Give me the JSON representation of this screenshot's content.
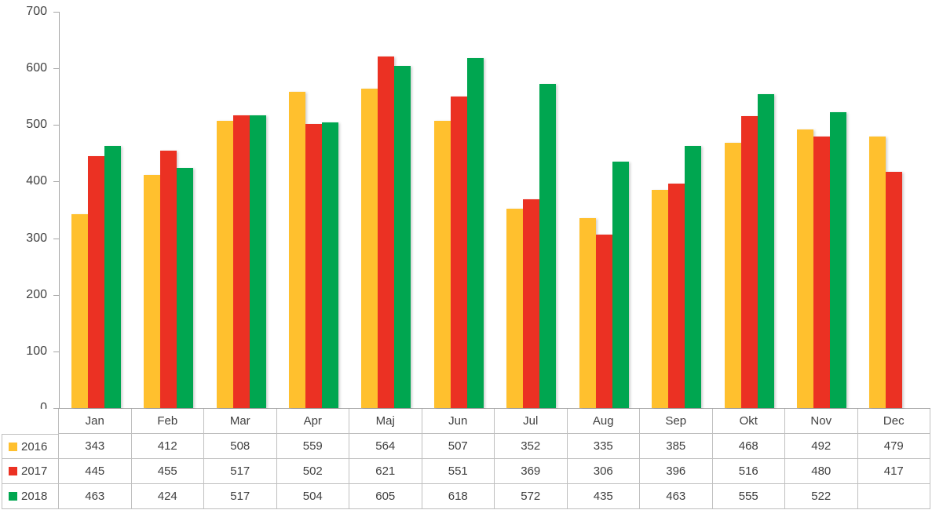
{
  "chart_data": {
    "type": "bar",
    "title": "",
    "xlabel": "",
    "ylabel": "",
    "categories": [
      "Jan",
      "Feb",
      "Mar",
      "Apr",
      "Maj",
      "Jun",
      "Jul",
      "Aug",
      "Sep",
      "Okt",
      "Nov",
      "Dec"
    ],
    "series": [
      {
        "name": "2016",
        "color": "#FFC02E",
        "values": [
          343,
          412,
          508,
          559,
          564,
          507,
          352,
          335,
          385,
          468,
          492,
          479
        ]
      },
      {
        "name": "2017",
        "color": "#EB3123",
        "values": [
          445,
          455,
          517,
          502,
          621,
          551,
          369,
          306,
          396,
          516,
          480,
          417
        ]
      },
      {
        "name": "2018",
        "color": "#00A650",
        "values": [
          463,
          424,
          517,
          504,
          605,
          618,
          572,
          435,
          463,
          555,
          522,
          null
        ]
      }
    ],
    "ylim": [
      0,
      700
    ],
    "yticks": [
      0,
      100,
      200,
      300,
      400,
      500,
      600,
      700
    ],
    "grid": false,
    "legend_position": "data-table-left-column",
    "data_table_shown": true
  },
  "axis_style": {
    "line_color": "#a6a6a6",
    "label_color": "#404040"
  },
  "table_style": {
    "border_color": "#bfbfbf",
    "text_color": "#404040"
  }
}
